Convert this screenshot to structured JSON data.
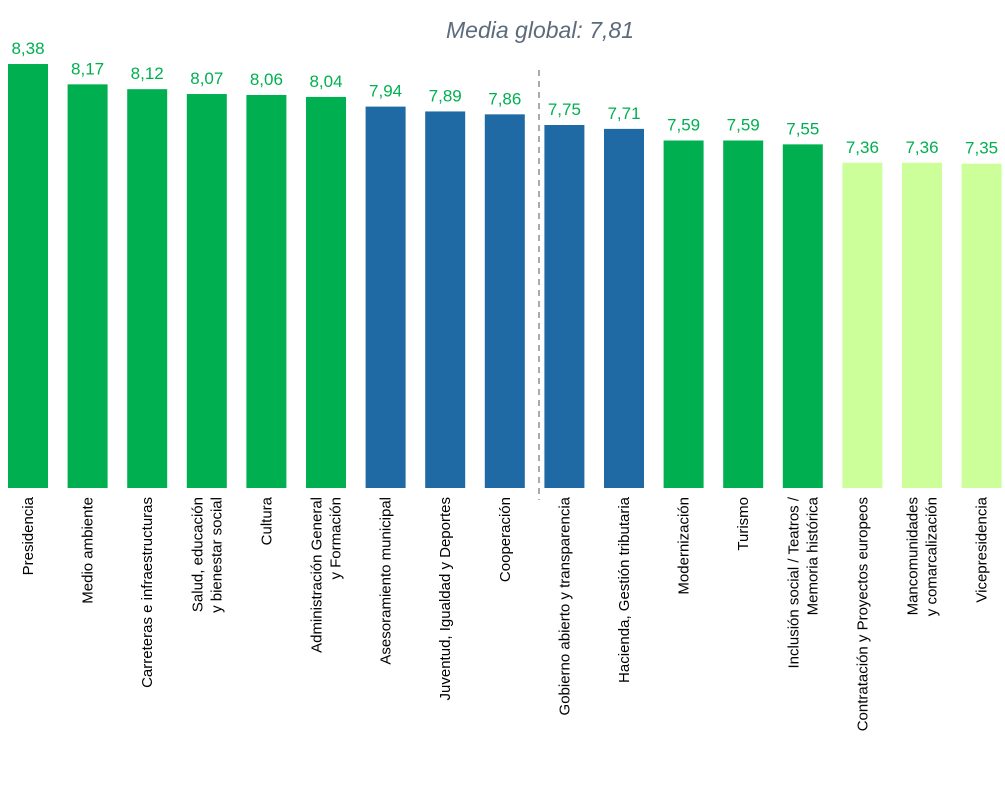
{
  "chart_data": {
    "type": "bar",
    "annotation": "Media global: 7,81",
    "categories": [
      "Presidencia",
      "Medio ambiente",
      "Carreteras e infraestructuras",
      "Salud, educación\ny bienestar social",
      "Cultura",
      "Administración General\ny Formación",
      "Asesoramiento municipal",
      "Juventud, Igualdad y Deportes",
      "Cooperación",
      "Gobierno abierto y transparencia",
      "Hacienda, Gestión tributaria",
      "Modernización",
      "Turismo",
      "Inclusión social / Teatros /\nMemoria histórica",
      "Contratación y Proyectos europeos",
      "Mancomunidades\ny comarcalización",
      "Vicepresidencia"
    ],
    "values": [
      8.38,
      8.17,
      8.12,
      8.07,
      8.06,
      8.04,
      7.94,
      7.89,
      7.86,
      7.75,
      7.71,
      7.59,
      7.59,
      7.55,
      7.36,
      7.36,
      7.35
    ],
    "value_labels": [
      "8,38",
      "8,17",
      "8,12",
      "8,07",
      "8,06",
      "8,04",
      "7,94",
      "7,89",
      "7,86",
      "7,75",
      "7,71",
      "7,59",
      "7,59",
      "7,55",
      "7,36",
      "7,36",
      "7,35"
    ],
    "colors": [
      "#00b050",
      "#00b050",
      "#00b050",
      "#00b050",
      "#00b050",
      "#00b050",
      "#1f6aa5",
      "#1f6aa5",
      "#1f6aa5",
      "#1f6aa5",
      "#1f6aa5",
      "#00b050",
      "#00b050",
      "#00b050",
      "#ccff99",
      "#ccff99",
      "#ccff99"
    ],
    "label_color": "#00b050",
    "ylim": [
      4,
      8.5
    ]
  }
}
